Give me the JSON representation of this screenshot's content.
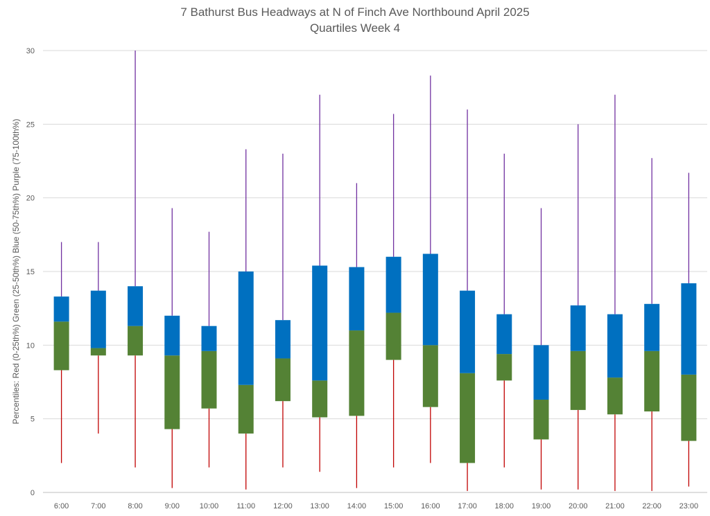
{
  "chart_data": {
    "type": "boxplot",
    "title": "7 Bathurst Bus Headways at N of Finch Ave Northbound April 2025",
    "subtitle": "Quartiles Week 4",
    "ylabel": "Percentiles:  Red (0-25th%)  Green (25-50th%)  Blue (50-75th%)  Purple (75-100th%)",
    "xlabel": "",
    "ylim": [
      0,
      30
    ],
    "yticks": [
      "0",
      "5",
      "10",
      "15",
      "20",
      "25",
      "30"
    ],
    "grid": true,
    "categories": [
      "6:00",
      "7:00",
      "8:00",
      "9:00",
      "10:00",
      "11:00",
      "12:00",
      "13:00",
      "14:00",
      "15:00",
      "16:00",
      "17:00",
      "18:00",
      "19:00",
      "20:00",
      "21:00",
      "22:00",
      "23:00"
    ],
    "series": [
      {
        "name": "Red (0-25th%)",
        "color": "#C00000",
        "min": [
          2.0,
          4.0,
          1.7,
          0.3,
          1.7,
          0.2,
          1.7,
          1.4,
          0.3,
          1.7,
          2.0,
          0.1,
          1.7,
          0.2,
          0.2,
          0.1,
          0.1,
          0.4
        ]
      },
      {
        "name": "Green (25-50th%)",
        "color": "#548235",
        "q1": [
          8.3,
          9.3,
          9.3,
          4.3,
          5.7,
          4.0,
          6.2,
          5.1,
          5.2,
          9.0,
          5.8,
          2.0,
          7.6,
          3.6,
          5.6,
          5.3,
          5.5,
          3.5
        ]
      },
      {
        "name": "Blue (50-75th%)",
        "color": "#0070C0",
        "median": [
          11.6,
          9.8,
          11.3,
          9.3,
          9.6,
          7.3,
          9.1,
          7.6,
          11.0,
          12.2,
          10.0,
          8.1,
          9.4,
          6.3,
          9.6,
          7.8,
          9.6,
          8.0
        ]
      },
      {
        "name": "Purple (75-100th%)",
        "color": "#7030A0",
        "q3": [
          13.3,
          13.7,
          14.0,
          12.0,
          11.3,
          15.0,
          11.7,
          15.4,
          15.3,
          16.0,
          16.2,
          13.7,
          12.1,
          10.0,
          12.7,
          12.1,
          12.8,
          14.2
        ],
        "max": [
          17.0,
          17.0,
          30.0,
          19.3,
          17.7,
          23.3,
          23.0,
          27.0,
          21.0,
          25.7,
          28.3,
          26.0,
          23.0,
          19.3,
          25.0,
          27.0,
          22.7,
          21.7
        ]
      }
    ]
  }
}
